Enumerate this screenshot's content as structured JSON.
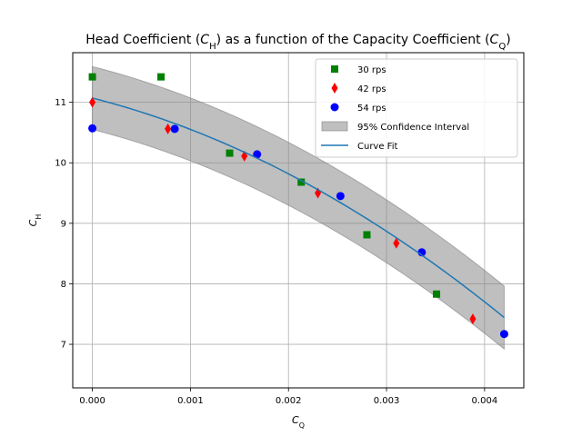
{
  "chart_data": {
    "type": "scatter",
    "title": "Head Coefficient (C_H) as a function of the Capacity Coefficient (C_Q)",
    "title_parts": [
      {
        "text": "Head Coefficient (",
        "style": "normal"
      },
      {
        "text": "C",
        "style": "italic"
      },
      {
        "text": "H",
        "style": "sub"
      },
      {
        "text": ") as a function of the Capacity Coefficient (",
        "style": "normal"
      },
      {
        "text": "C",
        "style": "italic"
      },
      {
        "text": "Q",
        "style": "sub"
      },
      {
        "text": ")",
        "style": "normal"
      }
    ],
    "xlabel": {
      "main": "C",
      "sub": "Q"
    },
    "ylabel": {
      "main": "C",
      "sub": "H"
    },
    "xlim": [
      -0.0002,
      0.0044
    ],
    "ylim": [
      6.28,
      11.82
    ],
    "x_ticks": [
      0,
      0.001,
      0.002,
      0.003,
      0.004
    ],
    "x_tick_labels": [
      "0.000",
      "0.001",
      "0.002",
      "0.003",
      "0.004"
    ],
    "y_ticks": [
      7,
      8,
      9,
      10,
      11
    ],
    "y_tick_labels": [
      "7",
      "8",
      "9",
      "10",
      "11"
    ],
    "grid": true,
    "legend_position": "top-right",
    "series": [
      {
        "name": "30 rps",
        "marker": "square",
        "color": "#008000",
        "x": [
          0.0,
          0.0007,
          0.0014,
          0.00213,
          0.0028,
          0.00351
        ],
        "y": [
          11.42,
          11.42,
          10.16,
          9.68,
          8.81,
          7.83
        ]
      },
      {
        "name": "42 rps",
        "marker": "thin_diamond",
        "color": "#ff0000",
        "x": [
          0.0,
          0.00077,
          0.00155,
          0.0023,
          0.0031,
          0.00388
        ],
        "y": [
          11.0,
          10.56,
          10.11,
          9.5,
          8.67,
          7.42
        ]
      },
      {
        "name": "54 rps",
        "marker": "circle",
        "color": "#0000ff",
        "x": [
          0.0,
          0.00084,
          0.00168,
          0.00253,
          0.00336,
          0.0042
        ],
        "y": [
          10.57,
          10.56,
          10.14,
          9.45,
          8.52,
          7.17
        ]
      }
    ],
    "curve_fit": {
      "name": "Curve Fit",
      "color": "#1f77b4",
      "x_range": [
        0.0,
        0.0042
      ],
      "coeffs": [
        -108000,
        -410,
        11.07
      ]
    },
    "confidence_interval": {
      "name": "95% Confidence Interval",
      "color": "#808080",
      "x_range": [
        0.0,
        0.0042
      ],
      "half_width_start": 0.52,
      "half_width_end": 0.52,
      "fill_opacity": 0.5
    },
    "legend_order": [
      "30 rps",
      "42 rps",
      "54 rps",
      "95% Confidence Interval",
      "Curve Fit"
    ]
  }
}
